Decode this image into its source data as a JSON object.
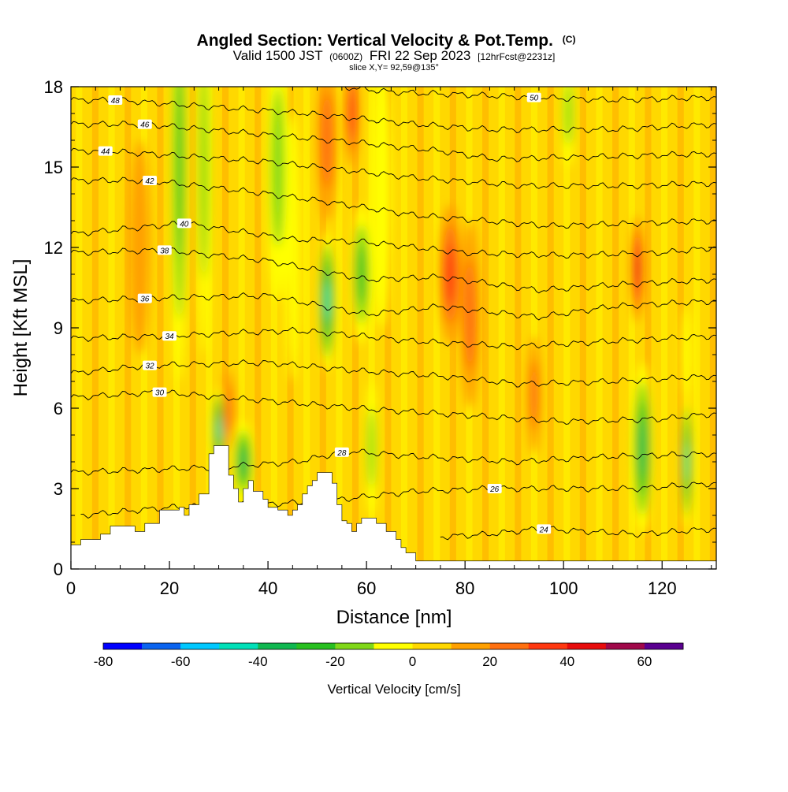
{
  "chart_data": {
    "type": "heatmap",
    "title": "Angled Section: Vertical Velocity & Pot.Temp.",
    "title_suffix": "(C)",
    "subtitle": {
      "valid_label": "Valid 1500 JST",
      "utc": "(0600Z)",
      "date": "FRI 22 Sep 2023",
      "forecast": "[12hrFcst@2231z]"
    },
    "slice_label": "slice X,Y= 92,59@135°",
    "xlabel": "Distance [nm]",
    "ylabel": "Height [Kft MSL]",
    "xlim": [
      0,
      131
    ],
    "ylim": [
      0,
      18
    ],
    "x_ticks": [
      0,
      20,
      40,
      60,
      80,
      100,
      120
    ],
    "y_ticks": [
      0,
      3,
      6,
      9,
      12,
      15,
      18
    ],
    "colorbar": {
      "label": "Vertical Velocity [cm/s]",
      "bounds": [
        -80,
        70
      ],
      "step": 10,
      "tick_labels": [
        -80,
        -60,
        -40,
        -20,
        0,
        20,
        40,
        60
      ],
      "colors": [
        "#0000ff",
        "#0a64f0",
        "#00c8ff",
        "#00e0b8",
        "#10b850",
        "#28c020",
        "#80d818",
        "#ffff00",
        "#ffd800",
        "#ffa000",
        "#ff7010",
        "#ff3810",
        "#e80c0c",
        "#a0084a",
        "#5a0090"
      ]
    },
    "background_velocity": 3,
    "terrain": [
      [
        0,
        0.9
      ],
      [
        1,
        0.9
      ],
      [
        2,
        1.1
      ],
      [
        6,
        1.3
      ],
      [
        8,
        1.6
      ],
      [
        12,
        1.6
      ],
      [
        13,
        1.4
      ],
      [
        15,
        1.7
      ],
      [
        18,
        2.2
      ],
      [
        22,
        2.3
      ],
      [
        23,
        2.0
      ],
      [
        24,
        2.4
      ],
      [
        26,
        2.8
      ],
      [
        28,
        4.3
      ],
      [
        29,
        4.6
      ],
      [
        31,
        4.6
      ],
      [
        32,
        3.5
      ],
      [
        33,
        3.0
      ],
      [
        34,
        2.5
      ],
      [
        35,
        3.0
      ],
      [
        36,
        3.3
      ],
      [
        37,
        2.9
      ],
      [
        38,
        2.9
      ],
      [
        39,
        2.6
      ],
      [
        40,
        2.3
      ],
      [
        42,
        2.2
      ],
      [
        44,
        2.0
      ],
      [
        45,
        2.2
      ],
      [
        46,
        2.4
      ],
      [
        47,
        2.8
      ],
      [
        48,
        3.1
      ],
      [
        49,
        3.3
      ],
      [
        50,
        3.6
      ],
      [
        52,
        3.6
      ],
      [
        53,
        3.2
      ],
      [
        54,
        2.4
      ],
      [
        55,
        1.8
      ],
      [
        56,
        1.7
      ],
      [
        57,
        1.4
      ],
      [
        58,
        1.7
      ],
      [
        59,
        1.9
      ],
      [
        60,
        1.9
      ],
      [
        62,
        1.7
      ],
      [
        64,
        1.4
      ],
      [
        66,
        1.1
      ],
      [
        67,
        0.8
      ],
      [
        68,
        0.6
      ],
      [
        70,
        0.3
      ],
      [
        131,
        0.3
      ]
    ],
    "vertical_velocity_cells": [
      {
        "x": 22,
        "y": 15,
        "w": 1.6,
        "h": 8,
        "v": -30
      },
      {
        "x": 27,
        "y": 15,
        "w": 1.4,
        "h": 7,
        "v": -20
      },
      {
        "x": 42,
        "y": 15,
        "w": 2.2,
        "h": 5,
        "v": -25
      },
      {
        "x": 45,
        "y": 12,
        "w": 1.5,
        "h": 5,
        "v": -15
      },
      {
        "x": 52,
        "y": 10,
        "w": 1.6,
        "h": 2.6,
        "v": -50
      },
      {
        "x": 59,
        "y": 11,
        "w": 2.0,
        "h": 2.6,
        "v": -30
      },
      {
        "x": 63,
        "y": 14,
        "w": 2.0,
        "h": 5,
        "v": -15
      },
      {
        "x": 30,
        "y": 5.2,
        "w": 1.2,
        "h": 1.6,
        "v": -55
      },
      {
        "x": 35,
        "y": 4.0,
        "w": 2.0,
        "h": 1.5,
        "v": -40
      },
      {
        "x": 61,
        "y": 4.5,
        "w": 1.2,
        "h": 2.5,
        "v": -25
      },
      {
        "x": 116,
        "y": 4.5,
        "w": 2.0,
        "h": 3.2,
        "v": -45
      },
      {
        "x": 125,
        "y": 4.0,
        "w": 1.0,
        "h": 2.5,
        "v": -55
      },
      {
        "x": 125,
        "y": 8.0,
        "w": 1.0,
        "h": 1.8,
        "v": -15
      },
      {
        "x": 101,
        "y": 17.0,
        "w": 1.3,
        "h": 2.0,
        "v": -20
      },
      {
        "x": 57,
        "y": 17.0,
        "w": 1.4,
        "h": 2.0,
        "v": 35
      },
      {
        "x": 52,
        "y": 16.0,
        "w": 2.0,
        "h": 3.0,
        "v": 20
      },
      {
        "x": 77,
        "y": 11.0,
        "w": 2.2,
        "h": 2.6,
        "v": 35
      },
      {
        "x": 81,
        "y": 9.5,
        "w": 2.0,
        "h": 3.5,
        "v": 22
      },
      {
        "x": 115,
        "y": 11.2,
        "w": 1.3,
        "h": 2.0,
        "v": 40
      },
      {
        "x": 94,
        "y": 6.5,
        "w": 1.4,
        "h": 2.2,
        "v": 25
      },
      {
        "x": 32,
        "y": 6.0,
        "w": 1.2,
        "h": 1.5,
        "v": 20
      },
      {
        "x": 14,
        "y": 12.0,
        "w": 2.0,
        "h": 4.0,
        "v": 10
      }
    ],
    "isentropes": [
      {
        "value": 24,
        "label_x": 96,
        "points": [
          [
            75,
            1.2
          ],
          [
            85,
            1.3
          ],
          [
            95,
            1.5
          ],
          [
            105,
            1.4
          ],
          [
            115,
            1.3
          ],
          [
            131,
            1.5
          ]
        ]
      },
      {
        "value": 26,
        "label_x": 86,
        "points": [
          [
            2,
            2.0
          ],
          [
            20,
            2.3
          ],
          [
            50,
            2.5
          ],
          [
            70,
            2.9
          ],
          [
            86,
            3.0
          ],
          [
            100,
            3.0
          ],
          [
            115,
            3.0
          ],
          [
            131,
            3.2
          ]
        ]
      },
      {
        "value": 28,
        "label_x": 55,
        "points": [
          [
            0,
            3.6
          ],
          [
            30,
            3.8
          ],
          [
            46,
            4.0
          ],
          [
            56,
            4.4
          ],
          [
            70,
            4.2
          ],
          [
            90,
            4.0
          ],
          [
            110,
            4.2
          ],
          [
            131,
            4.3
          ]
        ]
      },
      {
        "value": 30,
        "label_x": 18,
        "points": [
          [
            0,
            6.4
          ],
          [
            18,
            6.6
          ],
          [
            45,
            6.2
          ],
          [
            58,
            6.0
          ],
          [
            75,
            5.8
          ],
          [
            100,
            5.5
          ],
          [
            120,
            5.6
          ],
          [
            131,
            5.8
          ]
        ]
      },
      {
        "value": 32,
        "label_x": 16,
        "points": [
          [
            0,
            7.3
          ],
          [
            16,
            7.6
          ],
          [
            40,
            7.7
          ],
          [
            58,
            7.4
          ],
          [
            75,
            7.2
          ],
          [
            91,
            6.9
          ],
          [
            110,
            7.0
          ],
          [
            131,
            7.2
          ]
        ]
      },
      {
        "value": 34,
        "label_x": 20,
        "points": [
          [
            0,
            8.6
          ],
          [
            20,
            8.7
          ],
          [
            45,
            8.9
          ],
          [
            53,
            8.8
          ],
          [
            70,
            8.5
          ],
          [
            90,
            8.3
          ],
          [
            110,
            8.5
          ],
          [
            131,
            8.7
          ]
        ]
      },
      {
        "value": 36,
        "label_x": 15,
        "points": [
          [
            0,
            10.0
          ],
          [
            15,
            10.1
          ],
          [
            40,
            10.2
          ],
          [
            60,
            9.5
          ],
          [
            75,
            9.8
          ],
          [
            95,
            9.4
          ],
          [
            110,
            9.8
          ],
          [
            131,
            10.0
          ]
        ]
      },
      {
        "value": 38,
        "label_x": 19,
        "points": [
          [
            0,
            11.8
          ],
          [
            19,
            11.9
          ],
          [
            40,
            11.5
          ],
          [
            60,
            10.8
          ],
          [
            75,
            10.9
          ],
          [
            95,
            10.4
          ],
          [
            110,
            10.6
          ],
          [
            131,
            10.8
          ]
        ]
      },
      {
        "value": 40,
        "label_x": 23,
        "points": [
          [
            0,
            12.5
          ],
          [
            23,
            12.9
          ],
          [
            45,
            12.3
          ],
          [
            60,
            12.2
          ],
          [
            80,
            11.8
          ],
          [
            100,
            11.7
          ],
          [
            120,
            11.8
          ],
          [
            131,
            12.0
          ]
        ]
      },
      {
        "value": 42,
        "label_x": 16,
        "points": [
          [
            0,
            14.5
          ],
          [
            16,
            14.5
          ],
          [
            40,
            14.0
          ],
          [
            52,
            13.7
          ],
          [
            70,
            13.2
          ],
          [
            97,
            12.8
          ],
          [
            115,
            12.9
          ],
          [
            131,
            13.0
          ]
        ]
      },
      {
        "value": 44,
        "label_x": 7,
        "points": [
          [
            0,
            15.6
          ],
          [
            7,
            15.6
          ],
          [
            40,
            15.2
          ],
          [
            50,
            15.0
          ],
          [
            70,
            14.6
          ],
          [
            92,
            14.3
          ],
          [
            115,
            14.3
          ],
          [
            131,
            14.4
          ]
        ]
      },
      {
        "value": 46,
        "label_x": 15,
        "points": [
          [
            0,
            16.6
          ],
          [
            15,
            16.6
          ],
          [
            40,
            16.2
          ],
          [
            59,
            15.9
          ],
          [
            75,
            15.6
          ],
          [
            86,
            15.3
          ],
          [
            110,
            15.4
          ],
          [
            131,
            15.5
          ]
        ]
      },
      {
        "value": 48,
        "label_x": 9,
        "points": [
          [
            0,
            17.5
          ],
          [
            9,
            17.5
          ],
          [
            40,
            17.1
          ],
          [
            48,
            17.0
          ],
          [
            70,
            16.6
          ],
          [
            85,
            16.4
          ],
          [
            110,
            16.4
          ],
          [
            131,
            16.6
          ]
        ]
      },
      {
        "value": 50,
        "label_x": 94,
        "points": [
          [
            55,
            18.0
          ],
          [
            65,
            17.8
          ],
          [
            80,
            17.7
          ],
          [
            94,
            17.6
          ],
          [
            110,
            17.5
          ],
          [
            131,
            17.6
          ]
        ]
      }
    ]
  }
}
